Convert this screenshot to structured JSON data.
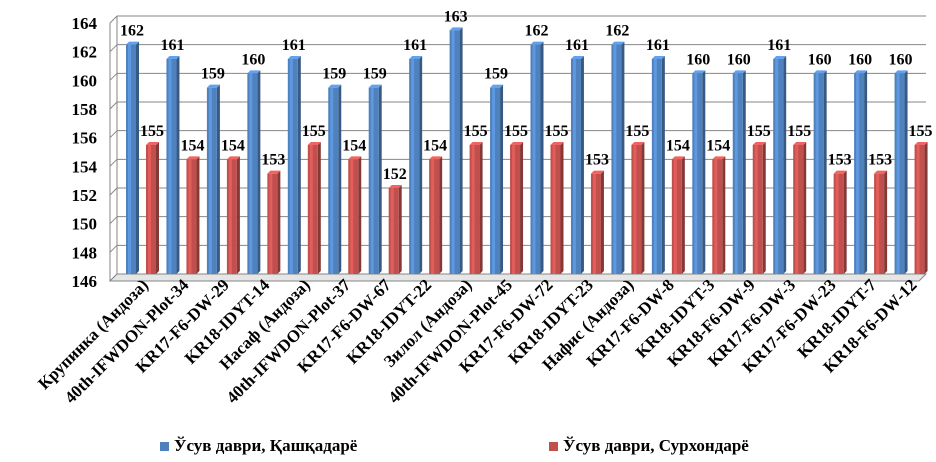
{
  "chart_data": {
    "type": "bar",
    "categories": [
      "Крупинка (Андоза)",
      "40th-IFWDON-Plot-34",
      "KR17-F6-DW-29",
      "KR18-IDYT-14",
      "Насаф (Андоза)",
      "40th-IFWDON-Plot-37",
      "KR17-F6-DW-67",
      "KR18-IDYT-22",
      "Зилол (Андоза)",
      "40th-IFWDON-Plot-45",
      "KR17-F6-DW-72",
      "KR18-IDYT-23",
      "Нафис (Андоза)",
      "KR17-F6-DW-8",
      "KR18-IDYT-3",
      "KR18-F6-DW-9",
      "KR17-F6-DW-3",
      "KR17-F6-DW-23",
      "KR18-IDYT-7",
      "KR18-F6-DW-12"
    ],
    "series": [
      {
        "name": "Ўсув даври,  Қашқадарё",
        "color": "#4f81bd",
        "values": [
          162,
          161,
          159,
          160,
          161,
          159,
          159,
          161,
          163,
          159,
          162,
          161,
          162,
          161,
          160,
          160,
          161,
          160,
          160,
          160
        ]
      },
      {
        "name": "Ўсув даври,  Сурхондарё",
        "color": "#c0504d",
        "values": [
          155,
          154,
          154,
          153,
          155,
          154,
          152,
          154,
          155,
          155,
          155,
          153,
          155,
          154,
          154,
          155,
          155,
          153,
          153,
          155
        ]
      }
    ],
    "ylim": [
      146,
      164
    ],
    "yticks": [
      146,
      148,
      150,
      152,
      154,
      156,
      158,
      160,
      162,
      164
    ],
    "grid": true,
    "legend": "bottom",
    "title": "",
    "xlabel": "",
    "ylabel": ""
  }
}
